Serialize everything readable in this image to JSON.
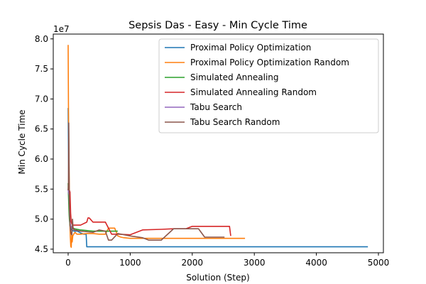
{
  "chart_data": {
    "type": "line",
    "title": "Sepsis Das - Easy - Min Cycle Time",
    "xlabel": "Solution (Step)",
    "ylabel": "Min Cycle Time",
    "y_offset_label": "1e7",
    "xlim": [
      -240,
      5080
    ],
    "ylim": [
      44400000,
      80800000
    ],
    "x_ticks": [
      0,
      1000,
      2000,
      3000,
      4000,
      5000
    ],
    "x_tick_labels": [
      "0",
      "1000",
      "2000",
      "3000",
      "4000",
      "5000"
    ],
    "y_ticks": [
      45000000,
      50000000,
      55000000,
      60000000,
      65000000,
      70000000,
      75000000,
      80000000
    ],
    "y_tick_labels": [
      "4.5",
      "5.0",
      "5.5",
      "6.0",
      "6.5",
      "7.0",
      "7.5",
      "8.0"
    ],
    "legend_position": "top-right",
    "grid": false,
    "series": [
      {
        "name": "Proximal Policy Optimization",
        "color": "#1f77b4",
        "x": [
          0,
          10,
          20,
          30,
          40,
          60,
          100,
          150,
          200,
          250,
          290,
          300,
          1000,
          2000,
          3000,
          4000,
          4830
        ],
        "y": [
          68500000,
          55000000,
          50500000,
          48800000,
          48500000,
          48100000,
          48000000,
          48000000,
          47700000,
          47500000,
          47500000,
          45400000,
          45400000,
          45400000,
          45400000,
          45400000,
          45400000
        ]
      },
      {
        "name": "Proximal Policy Optimization Random",
        "color": "#ff7f0e",
        "x": [
          0,
          5,
          12,
          20,
          28,
          35,
          42,
          50,
          58,
          65,
          75,
          90,
          110,
          140,
          200,
          300,
          400,
          500,
          600,
          650,
          700,
          750,
          800,
          850,
          900,
          1000,
          1500,
          2000,
          2500,
          2850
        ],
        "y": [
          79000000,
          69000000,
          61000000,
          54000000,
          49500000,
          47000000,
          45500000,
          45300000,
          47500000,
          46200000,
          47200000,
          47500000,
          47800000,
          47500000,
          47500000,
          47600000,
          47600000,
          47500000,
          47500000,
          48500000,
          48500000,
          48500000,
          47200000,
          47000000,
          46900000,
          46800000,
          46800000,
          46800000,
          46800000,
          46800000
        ]
      },
      {
        "name": "Simulated Annealing",
        "color": "#2ca02c",
        "x": [
          0,
          5,
          10,
          15,
          20,
          25,
          30,
          40,
          60,
          100,
          200,
          300,
          400,
          500,
          600,
          700,
          800
        ],
        "y": [
          56000000,
          54000000,
          52500000,
          51000000,
          50000000,
          49500000,
          49000000,
          48800000,
          48600000,
          48400000,
          48200000,
          48100000,
          48000000,
          48000000,
          48000000,
          48000000,
          48000000
        ]
      },
      {
        "name": "Simulated Annealing Random",
        "color": "#d62728",
        "x": [
          0,
          10,
          20,
          30,
          40,
          50,
          60,
          70,
          80,
          100,
          150,
          200,
          300,
          320,
          340,
          400,
          450,
          600,
          700,
          750,
          800,
          1000,
          1200,
          1500,
          1700,
          1800,
          1900,
          2000,
          2200,
          2400,
          2600,
          2620
        ],
        "y": [
          55000000,
          54800000,
          54800000,
          54500000,
          51000000,
          49500000,
          49200000,
          48900000,
          49000000,
          49000000,
          49000000,
          49000000,
          49500000,
          50200000,
          50200000,
          49500000,
          49500000,
          49500000,
          47500000,
          47500000,
          47500000,
          47400000,
          48200000,
          48300000,
          48400000,
          48400000,
          48400000,
          48800000,
          48800000,
          48800000,
          48800000,
          47200000
        ]
      },
      {
        "name": "Tabu Search",
        "color": "#9467bd",
        "x": [
          0,
          5,
          10,
          15,
          20,
          25,
          30,
          40,
          60,
          80,
          100,
          150
        ],
        "y": [
          55000000,
          54500000,
          54200000,
          54000000,
          52000000,
          50500000,
          49500000,
          48900000,
          48500000,
          48300000,
          48200000,
          48100000
        ]
      },
      {
        "name": "Tabu Search Random",
        "color": "#8c564b",
        "x": [
          0,
          5,
          10,
          20,
          30,
          40,
          50,
          60,
          70,
          80,
          100,
          150,
          200,
          300,
          400,
          500,
          600,
          650,
          700,
          800,
          900,
          1000,
          1200,
          1300,
          1500,
          1700,
          1800,
          2000,
          2100,
          2200,
          2300,
          2400,
          2520
        ],
        "y": [
          54800000,
          56000000,
          66000000,
          52000000,
          49000000,
          48000000,
          47500000,
          47400000,
          50000000,
          48500000,
          48200000,
          48100000,
          48000000,
          47900000,
          47800000,
          48200000,
          48000000,
          46500000,
          46500000,
          47600000,
          47400000,
          47200000,
          46900000,
          46500000,
          46500000,
          48400000,
          48400000,
          48400000,
          48400000,
          47000000,
          47000000,
          47000000,
          47000000
        ]
      }
    ]
  }
}
